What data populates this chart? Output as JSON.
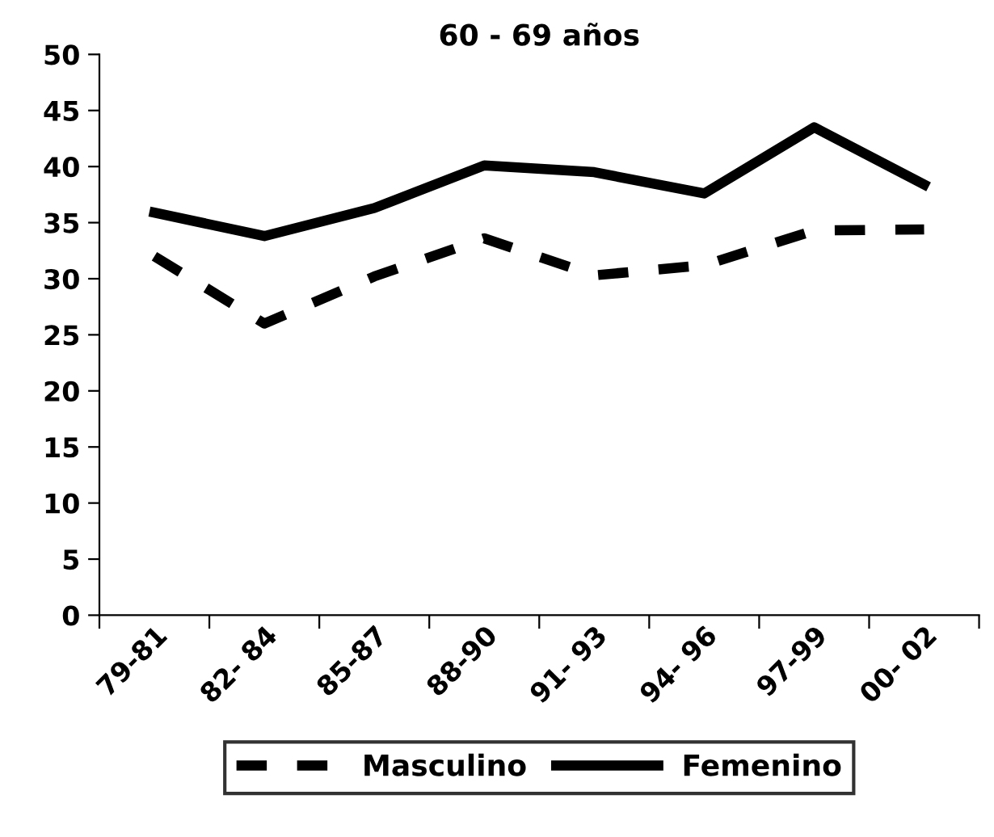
{
  "chart_data": {
    "type": "line",
    "title": "60 - 69 años",
    "categories": [
      "79-81",
      "82- 84",
      "85-87",
      "88-90",
      "91- 93",
      "94- 96",
      "97-99",
      "00- 02"
    ],
    "series": [
      {
        "name": "Masculino",
        "color": "#000000",
        "line_style": "dashed",
        "values": [
          32.0,
          26.0,
          30.2,
          33.6,
          30.3,
          31.2,
          34.3,
          34.4
        ]
      },
      {
        "name": "Femenino",
        "color": "#000000",
        "line_style": "solid",
        "values": [
          35.9,
          33.8,
          36.3,
          40.1,
          39.5,
          37.6,
          43.5,
          38.4
        ]
      }
    ],
    "ylim": [
      0,
      50
    ],
    "yticks": [
      0,
      5,
      10,
      15,
      20,
      25,
      30,
      35,
      40,
      45,
      50
    ],
    "grid": false,
    "legend": "bottom",
    "marker": "none"
  }
}
